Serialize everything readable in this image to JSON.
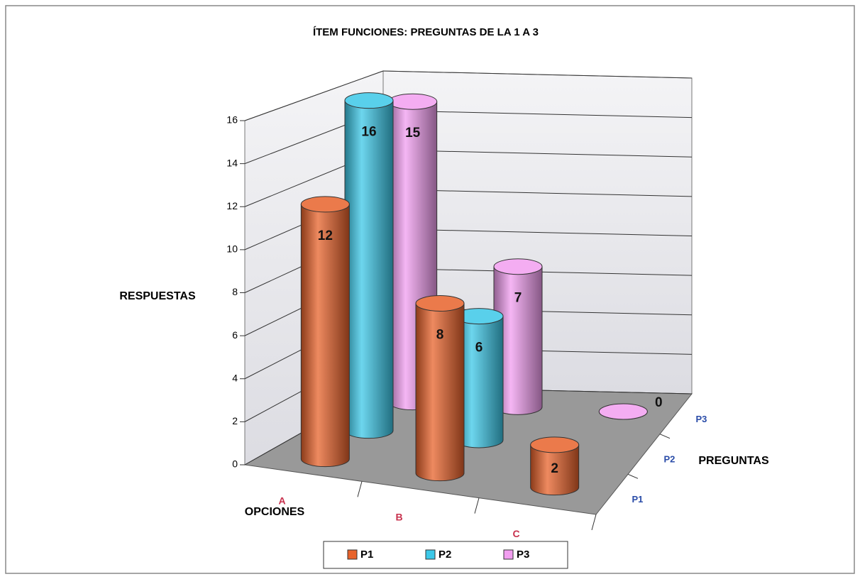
{
  "chart_data": {
    "type": "cylinder3d",
    "title": "ÍTEM FUNCIONES: PREGUNTAS DE LA 1 A 3",
    "y_label": "RESPUESTAS",
    "x_label": "OPCIONES",
    "z_label": "PREGUNTAS",
    "categories": [
      "A",
      "B",
      "C"
    ],
    "series": [
      {
        "name": "P1",
        "color": "#e8632b",
        "values": [
          12,
          8,
          2
        ]
      },
      {
        "name": "P2",
        "color": "#3cc8e8",
        "values": [
          16,
          6,
          null
        ]
      },
      {
        "name": "P3",
        "color": "#f29ef0",
        "values": [
          15,
          7,
          0
        ]
      }
    ],
    "ylim": [
      0,
      16
    ],
    "yticks": [
      0,
      2,
      4,
      6,
      8,
      10,
      12,
      14,
      16
    ],
    "grid": true,
    "legend": "bottom"
  }
}
